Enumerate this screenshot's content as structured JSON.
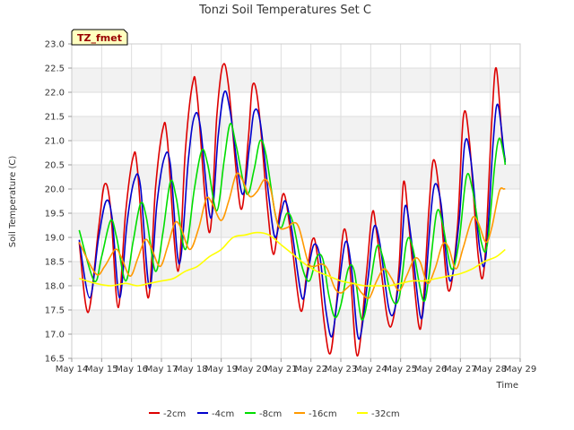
{
  "chart_data": {
    "type": "line",
    "title": "Tonzi Soil Temperatures Set C",
    "xlabel": "Time",
    "ylabel": "Soil Temperature (C)",
    "tag": "TZ_fmet",
    "xlim": [
      14,
      29
    ],
    "ylim": [
      16.5,
      23.0
    ],
    "x_ticks": [
      {
        "value": 14,
        "label": "May 14"
      },
      {
        "value": 15,
        "label": "May 15"
      },
      {
        "value": 16,
        "label": "May 16"
      },
      {
        "value": 17,
        "label": "May 17"
      },
      {
        "value": 18,
        "label": "May 18"
      },
      {
        "value": 19,
        "label": "May 19"
      },
      {
        "value": 20,
        "label": "May 20"
      },
      {
        "value": 21,
        "label": "May 21"
      },
      {
        "value": 22,
        "label": "May 22"
      },
      {
        "value": 23,
        "label": "May 23"
      },
      {
        "value": 24,
        "label": "May 24"
      },
      {
        "value": 25,
        "label": "May 25"
      },
      {
        "value": 26,
        "label": "May 26"
      },
      {
        "value": 27,
        "label": "May 27"
      },
      {
        "value": 28,
        "label": "May 28"
      },
      {
        "value": 29,
        "label": "May 29"
      }
    ],
    "y_ticks": [
      {
        "value": 16.5,
        "label": "16.5"
      },
      {
        "value": 17.0,
        "label": "17.0"
      },
      {
        "value": 17.5,
        "label": "17.5"
      },
      {
        "value": 18.0,
        "label": "18.0"
      },
      {
        "value": 18.5,
        "label": "18.5"
      },
      {
        "value": 19.0,
        "label": "19.0"
      },
      {
        "value": 19.5,
        "label": "19.5"
      },
      {
        "value": 20.0,
        "label": "20.0"
      },
      {
        "value": 20.5,
        "label": "20.5"
      },
      {
        "value": 21.0,
        "label": "21.0"
      },
      {
        "value": 21.5,
        "label": "21.5"
      },
      {
        "value": 22.0,
        "label": "22.0"
      },
      {
        "value": 22.5,
        "label": "22.5"
      },
      {
        "value": 23.0,
        "label": "23.0"
      }
    ],
    "grid": true,
    "legend_position": "bottom",
    "series": [
      {
        "name": "-2cm",
        "color": "#dd0000",
        "points": [
          [
            14.25,
            18.9
          ],
          [
            14.55,
            17.45
          ],
          [
            14.9,
            19.2
          ],
          [
            15.1,
            20.1
          ],
          [
            15.3,
            19.6
          ],
          [
            15.55,
            17.55
          ],
          [
            15.8,
            19.5
          ],
          [
            16.05,
            20.65
          ],
          [
            16.2,
            20.4
          ],
          [
            16.55,
            17.75
          ],
          [
            16.8,
            20.0
          ],
          [
            17.05,
            21.25
          ],
          [
            17.2,
            21.0
          ],
          [
            17.55,
            18.3
          ],
          [
            17.8,
            20.8
          ],
          [
            18.05,
            22.2
          ],
          [
            18.2,
            21.9
          ],
          [
            18.6,
            19.1
          ],
          [
            18.85,
            21.5
          ],
          [
            19.05,
            22.55
          ],
          [
            19.25,
            22.1
          ],
          [
            19.65,
            19.6
          ],
          [
            19.9,
            21.0
          ],
          [
            20.05,
            22.15
          ],
          [
            20.25,
            21.7
          ],
          [
            20.55,
            19.6
          ],
          [
            20.75,
            18.65
          ],
          [
            20.95,
            19.5
          ],
          [
            21.1,
            19.9
          ],
          [
            21.3,
            19.2
          ],
          [
            21.65,
            17.5
          ],
          [
            21.85,
            18.2
          ],
          [
            22.05,
            18.95
          ],
          [
            22.2,
            18.7
          ],
          [
            22.45,
            17.2
          ],
          [
            22.65,
            16.6
          ],
          [
            22.85,
            17.6
          ],
          [
            23.1,
            19.15
          ],
          [
            23.3,
            18.4
          ],
          [
            23.55,
            16.55
          ],
          [
            23.85,
            18.2
          ],
          [
            24.05,
            19.5
          ],
          [
            24.2,
            19.1
          ],
          [
            24.55,
            17.35
          ],
          [
            24.75,
            17.3
          ],
          [
            24.95,
            18.4
          ],
          [
            25.1,
            20.15
          ],
          [
            25.3,
            19.1
          ],
          [
            25.6,
            17.2
          ],
          [
            25.75,
            17.6
          ],
          [
            25.95,
            19.6
          ],
          [
            26.1,
            20.6
          ],
          [
            26.3,
            19.9
          ],
          [
            26.6,
            17.9
          ],
          [
            26.9,
            19.2
          ],
          [
            27.1,
            21.5
          ],
          [
            27.3,
            21.0
          ],
          [
            27.6,
            18.6
          ],
          [
            27.8,
            18.4
          ],
          [
            28.05,
            21.4
          ],
          [
            28.2,
            22.5
          ],
          [
            28.4,
            21.0
          ],
          [
            28.5,
            20.6
          ]
        ]
      },
      {
        "name": "-4cm",
        "color": "#0000cc",
        "points": [
          [
            14.25,
            18.95
          ],
          [
            14.6,
            17.75
          ],
          [
            14.9,
            19.0
          ],
          [
            15.15,
            19.75
          ],
          [
            15.35,
            19.4
          ],
          [
            15.6,
            17.75
          ],
          [
            15.85,
            19.3
          ],
          [
            16.1,
            20.2
          ],
          [
            16.3,
            20.05
          ],
          [
            16.6,
            17.95
          ],
          [
            16.85,
            19.7
          ],
          [
            17.1,
            20.65
          ],
          [
            17.3,
            20.5
          ],
          [
            17.6,
            18.45
          ],
          [
            17.9,
            20.6
          ],
          [
            18.1,
            21.5
          ],
          [
            18.3,
            21.3
          ],
          [
            18.65,
            19.4
          ],
          [
            18.9,
            21.1
          ],
          [
            19.1,
            22.0
          ],
          [
            19.3,
            21.6
          ],
          [
            19.7,
            19.9
          ],
          [
            19.95,
            20.9
          ],
          [
            20.1,
            21.6
          ],
          [
            20.3,
            21.4
          ],
          [
            20.6,
            19.8
          ],
          [
            20.8,
            19.0
          ],
          [
            21.0,
            19.5
          ],
          [
            21.15,
            19.75
          ],
          [
            21.35,
            19.2
          ],
          [
            21.7,
            17.75
          ],
          [
            21.9,
            18.3
          ],
          [
            22.1,
            18.85
          ],
          [
            22.3,
            18.6
          ],
          [
            22.5,
            17.5
          ],
          [
            22.7,
            16.95
          ],
          [
            22.9,
            17.8
          ],
          [
            23.15,
            18.9
          ],
          [
            23.35,
            18.4
          ],
          [
            23.6,
            16.9
          ],
          [
            23.9,
            18.1
          ],
          [
            24.1,
            19.2
          ],
          [
            24.3,
            18.9
          ],
          [
            24.6,
            17.55
          ],
          [
            24.8,
            17.5
          ],
          [
            25.0,
            18.45
          ],
          [
            25.15,
            19.65
          ],
          [
            25.35,
            19.0
          ],
          [
            25.65,
            17.4
          ],
          [
            25.8,
            17.75
          ],
          [
            26.0,
            19.4
          ],
          [
            26.15,
            20.1
          ],
          [
            26.35,
            19.7
          ],
          [
            26.65,
            18.1
          ],
          [
            26.95,
            19.3
          ],
          [
            27.15,
            20.95
          ],
          [
            27.35,
            20.6
          ],
          [
            27.65,
            18.75
          ],
          [
            27.85,
            18.6
          ],
          [
            28.1,
            21.0
          ],
          [
            28.25,
            21.75
          ],
          [
            28.45,
            20.8
          ],
          [
            28.5,
            20.55
          ]
        ]
      },
      {
        "name": "-8cm",
        "color": "#00dd00",
        "points": [
          [
            14.25,
            19.15
          ],
          [
            14.75,
            18.1
          ],
          [
            15.0,
            18.6
          ],
          [
            15.3,
            19.35
          ],
          [
            15.5,
            19.0
          ],
          [
            15.8,
            18.1
          ],
          [
            16.05,
            18.9
          ],
          [
            16.3,
            19.7
          ],
          [
            16.5,
            19.4
          ],
          [
            16.8,
            18.3
          ],
          [
            17.05,
            19.1
          ],
          [
            17.3,
            20.15
          ],
          [
            17.5,
            19.8
          ],
          [
            17.8,
            18.75
          ],
          [
            18.1,
            20.0
          ],
          [
            18.35,
            20.8
          ],
          [
            18.55,
            20.5
          ],
          [
            18.85,
            19.55
          ],
          [
            19.1,
            20.6
          ],
          [
            19.3,
            21.35
          ],
          [
            19.5,
            20.9
          ],
          [
            19.85,
            19.9
          ],
          [
            20.1,
            20.4
          ],
          [
            20.3,
            21.0
          ],
          [
            20.5,
            20.7
          ],
          [
            20.8,
            19.5
          ],
          [
            21.0,
            19.2
          ],
          [
            21.2,
            19.5
          ],
          [
            21.4,
            19.3
          ],
          [
            21.7,
            18.4
          ],
          [
            21.95,
            18.1
          ],
          [
            22.2,
            18.6
          ],
          [
            22.4,
            18.55
          ],
          [
            22.6,
            17.8
          ],
          [
            22.8,
            17.35
          ],
          [
            23.0,
            17.6
          ],
          [
            23.25,
            18.35
          ],
          [
            23.45,
            18.3
          ],
          [
            23.7,
            17.3
          ],
          [
            23.95,
            17.9
          ],
          [
            24.2,
            18.8
          ],
          [
            24.4,
            18.6
          ],
          [
            24.7,
            17.75
          ],
          [
            24.95,
            17.75
          ],
          [
            25.2,
            18.9
          ],
          [
            25.4,
            18.8
          ],
          [
            25.75,
            17.7
          ],
          [
            25.95,
            18.2
          ],
          [
            26.2,
            19.5
          ],
          [
            26.4,
            19.3
          ],
          [
            26.7,
            18.35
          ],
          [
            26.95,
            18.9
          ],
          [
            27.2,
            20.25
          ],
          [
            27.4,
            20.0
          ],
          [
            27.7,
            18.9
          ],
          [
            27.9,
            18.85
          ],
          [
            28.15,
            20.5
          ],
          [
            28.3,
            21.05
          ],
          [
            28.45,
            20.7
          ],
          [
            28.5,
            20.5
          ]
        ]
      },
      {
        "name": "-16cm",
        "color": "#ff9900",
        "points": [
          [
            14.25,
            18.9
          ],
          [
            14.8,
            18.25
          ],
          [
            15.1,
            18.4
          ],
          [
            15.45,
            18.75
          ],
          [
            15.65,
            18.6
          ],
          [
            15.95,
            18.2
          ],
          [
            16.2,
            18.55
          ],
          [
            16.45,
            18.95
          ],
          [
            16.65,
            18.8
          ],
          [
            16.95,
            18.4
          ],
          [
            17.2,
            18.8
          ],
          [
            17.45,
            19.3
          ],
          [
            17.65,
            19.2
          ],
          [
            17.95,
            18.75
          ],
          [
            18.25,
            19.2
          ],
          [
            18.5,
            19.8
          ],
          [
            18.7,
            19.7
          ],
          [
            19.0,
            19.35
          ],
          [
            19.25,
            19.75
          ],
          [
            19.5,
            20.3
          ],
          [
            19.7,
            20.2
          ],
          [
            19.95,
            19.85
          ],
          [
            20.2,
            19.95
          ],
          [
            20.45,
            20.2
          ],
          [
            20.65,
            20.0
          ],
          [
            20.9,
            19.25
          ],
          [
            21.2,
            19.2
          ],
          [
            21.4,
            19.3
          ],
          [
            21.6,
            19.2
          ],
          [
            21.9,
            18.5
          ],
          [
            22.1,
            18.4
          ],
          [
            22.35,
            18.45
          ],
          [
            22.55,
            18.35
          ],
          [
            22.8,
            17.95
          ],
          [
            23.0,
            17.85
          ],
          [
            23.2,
            17.95
          ],
          [
            23.45,
            18.05
          ],
          [
            23.7,
            17.85
          ],
          [
            23.95,
            17.75
          ],
          [
            24.2,
            18.1
          ],
          [
            24.45,
            18.35
          ],
          [
            24.7,
            18.15
          ],
          [
            24.95,
            17.9
          ],
          [
            25.2,
            18.2
          ],
          [
            25.45,
            18.55
          ],
          [
            25.65,
            18.5
          ],
          [
            25.9,
            18.05
          ],
          [
            26.15,
            18.35
          ],
          [
            26.4,
            18.85
          ],
          [
            26.6,
            18.8
          ],
          [
            26.85,
            18.35
          ],
          [
            27.1,
            18.8
          ],
          [
            27.4,
            19.4
          ],
          [
            27.6,
            19.3
          ],
          [
            27.85,
            18.9
          ],
          [
            28.05,
            19.2
          ],
          [
            28.3,
            19.95
          ],
          [
            28.45,
            20.0
          ],
          [
            28.5,
            20.0
          ]
        ]
      },
      {
        "name": "-32cm",
        "color": "#ffff00",
        "points": [
          [
            14.25,
            18.15
          ],
          [
            14.8,
            18.05
          ],
          [
            15.3,
            18.0
          ],
          [
            15.8,
            18.05
          ],
          [
            16.2,
            18.0
          ],
          [
            16.6,
            18.05
          ],
          [
            17.0,
            18.1
          ],
          [
            17.4,
            18.15
          ],
          [
            17.8,
            18.3
          ],
          [
            18.2,
            18.4
          ],
          [
            18.6,
            18.6
          ],
          [
            19.0,
            18.75
          ],
          [
            19.4,
            19.0
          ],
          [
            19.8,
            19.05
          ],
          [
            20.2,
            19.1
          ],
          [
            20.6,
            19.05
          ],
          [
            21.0,
            18.85
          ],
          [
            21.4,
            18.65
          ],
          [
            21.8,
            18.45
          ],
          [
            22.2,
            18.3
          ],
          [
            22.6,
            18.2
          ],
          [
            23.0,
            18.1
          ],
          [
            23.4,
            18.05
          ],
          [
            23.8,
            18.0
          ],
          [
            24.2,
            18.0
          ],
          [
            24.6,
            18.0
          ],
          [
            25.0,
            18.05
          ],
          [
            25.4,
            18.1
          ],
          [
            25.8,
            18.1
          ],
          [
            26.2,
            18.15
          ],
          [
            26.6,
            18.2
          ],
          [
            27.0,
            18.25
          ],
          [
            27.4,
            18.35
          ],
          [
            27.8,
            18.5
          ],
          [
            28.2,
            18.6
          ],
          [
            28.5,
            18.75
          ]
        ]
      }
    ]
  }
}
